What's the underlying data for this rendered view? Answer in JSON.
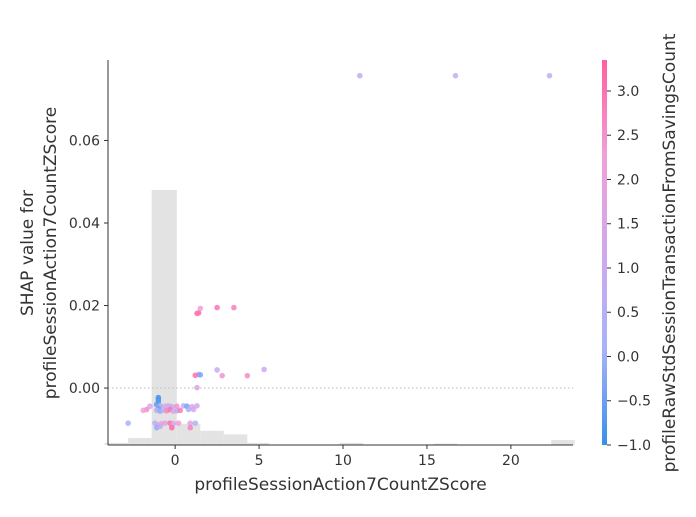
{
  "chart_data": {
    "type": "scatter",
    "xlabel": "profileSessionAction7CountZScore",
    "ylabel_lines": [
      "SHAP value for",
      "profileSessionAction7CountZScore"
    ],
    "colorbar_label": "profileRawStdSessionTransactionFromSavingsCount",
    "xlim": [
      -4.0,
      23.7
    ],
    "ylim": [
      -0.0138,
      0.0795
    ],
    "x_ticks": [
      0,
      5,
      10,
      15,
      20
    ],
    "y_ticks": [
      0.0,
      0.02,
      0.04,
      0.06
    ],
    "y_tick_labels": [
      "0.00",
      "0.02",
      "0.04",
      "0.06"
    ],
    "colorbar_ticks": [
      3.0,
      2.5,
      2.0,
      1.5,
      1.0,
      0.5,
      0.0,
      -0.5,
      -1.0
    ],
    "colorbar_tick_labels": [
      "3.0",
      "2.5",
      "2.0",
      "1.5",
      "1.0",
      "0.5",
      "0.0",
      "−0.5",
      "−1.0"
    ],
    "colorbar_range": [
      -1.0,
      3.35
    ],
    "colormap": [
      "#3a8fe8",
      "#a8b3f8",
      "#d0a8ee",
      "#f0a0d8",
      "#ff5fa0"
    ],
    "zero_line": true,
    "histogram": {
      "bin_edges": [
        -4.2,
        -2.8,
        -1.4,
        0.1,
        1.5,
        2.9,
        4.3,
        5.6,
        7.0,
        8.4,
        9.8,
        11.2,
        12.6,
        14.0,
        15.4,
        16.8,
        18.2,
        19.6,
        21.0,
        22.4,
        23.8
      ],
      "heights": [
        0.3,
        1.0,
        36.0,
        3.0,
        2.0,
        1.5,
        0.3,
        0.0,
        0.0,
        0.0,
        0.3,
        0.0,
        0.0,
        0.0,
        0.2,
        0.0,
        0.0,
        0.0,
        0.0,
        0.7
      ]
    },
    "points": [
      {
        "x": 11.0,
        "y": 0.0757,
        "c": 0.8
      },
      {
        "x": 16.7,
        "y": 0.0757,
        "c": 0.9
      },
      {
        "x": 22.3,
        "y": 0.0757,
        "c": 0.7
      },
      {
        "x": 3.5,
        "y": 0.0195,
        "c": 2.8
      },
      {
        "x": 2.5,
        "y": 0.0195,
        "c": 3.0
      },
      {
        "x": 1.4,
        "y": 0.0182,
        "c": 3.2
      },
      {
        "x": 1.5,
        "y": 0.0193,
        "c": 2.3
      },
      {
        "x": 1.3,
        "y": 0.0181,
        "c": 3.0
      },
      {
        "x": 1.4,
        "y": 0.0033,
        "c": 0.3
      },
      {
        "x": 1.2,
        "y": 0.0031,
        "c": 3.1
      },
      {
        "x": 1.5,
        "y": 0.0032,
        "c": -0.3
      },
      {
        "x": 2.5,
        "y": 0.0044,
        "c": 0.9
      },
      {
        "x": 2.8,
        "y": 0.003,
        "c": 2.5
      },
      {
        "x": 4.3,
        "y": 0.003,
        "c": 2.6
      },
      {
        "x": 5.3,
        "y": 0.0045,
        "c": 1.0
      },
      {
        "x": 1.3,
        "y": 0.0001,
        "c": 1.5
      },
      {
        "x": -1.0,
        "y": -0.0023,
        "c": -0.9
      },
      {
        "x": -1.0,
        "y": -0.0028,
        "c": -0.8
      },
      {
        "x": -1.0,
        "y": -0.0033,
        "c": -0.7
      },
      {
        "x": -1.1,
        "y": -0.004,
        "c": -0.6
      },
      {
        "x": -0.9,
        "y": -0.0043,
        "c": 0.0
      },
      {
        "x": -0.6,
        "y": -0.0044,
        "c": 1.6
      },
      {
        "x": -0.4,
        "y": -0.0043,
        "c": 1.2
      },
      {
        "x": -0.2,
        "y": -0.0045,
        "c": 0.5
      },
      {
        "x": 0.1,
        "y": -0.0044,
        "c": 2.5
      },
      {
        "x": 0.5,
        "y": -0.0043,
        "c": 0.6
      },
      {
        "x": 0.7,
        "y": -0.0044,
        "c": -0.4
      },
      {
        "x": 1.0,
        "y": -0.0045,
        "c": 1.7
      },
      {
        "x": 1.3,
        "y": -0.0043,
        "c": 1.3
      },
      {
        "x": -1.5,
        "y": -0.0044,
        "c": 1.4
      },
      {
        "x": -1.7,
        "y": -0.0052,
        "c": 2.6
      },
      {
        "x": -1.9,
        "y": -0.0054,
        "c": 2.2
      },
      {
        "x": -1.0,
        "y": -0.005,
        "c": -0.5
      },
      {
        "x": -1.1,
        "y": -0.0054,
        "c": 0.6
      },
      {
        "x": -0.9,
        "y": -0.0056,
        "c": -0.1
      },
      {
        "x": -0.7,
        "y": -0.0053,
        "c": 0.6
      },
      {
        "x": -0.5,
        "y": -0.0055,
        "c": 2.7
      },
      {
        "x": -0.3,
        "y": -0.0052,
        "c": 3.0
      },
      {
        "x": -0.1,
        "y": -0.0056,
        "c": 1.8
      },
      {
        "x": 0.1,
        "y": -0.0055,
        "c": 0.5
      },
      {
        "x": 0.3,
        "y": -0.0054,
        "c": 2.9
      },
      {
        "x": 0.8,
        "y": -0.0052,
        "c": 0.2
      },
      {
        "x": 1.1,
        "y": -0.0052,
        "c": 1.3
      },
      {
        "x": -2.8,
        "y": -0.0085,
        "c": 0.1
      },
      {
        "x": -1.2,
        "y": -0.0085,
        "c": 0.5
      },
      {
        "x": -1.0,
        "y": -0.0089,
        "c": 1.3
      },
      {
        "x": -0.8,
        "y": -0.0086,
        "c": 2.1
      },
      {
        "x": -0.6,
        "y": -0.0085,
        "c": 1.6
      },
      {
        "x": -0.3,
        "y": -0.0085,
        "c": 3.1
      },
      {
        "x": -0.1,
        "y": -0.0086,
        "c": 1.4
      },
      {
        "x": 0.2,
        "y": -0.0085,
        "c": 2.3
      },
      {
        "x": 0.9,
        "y": -0.0085,
        "c": 1.7
      },
      {
        "x": 1.2,
        "y": -0.0085,
        "c": 0.3
      },
      {
        "x": -1.1,
        "y": -0.0096,
        "c": -0.1
      },
      {
        "x": -0.9,
        "y": -0.0093,
        "c": 0.8
      },
      {
        "x": -0.2,
        "y": -0.0096,
        "c": 3.2
      },
      {
        "x": 0.9,
        "y": -0.0096,
        "c": 2.7
      }
    ]
  }
}
